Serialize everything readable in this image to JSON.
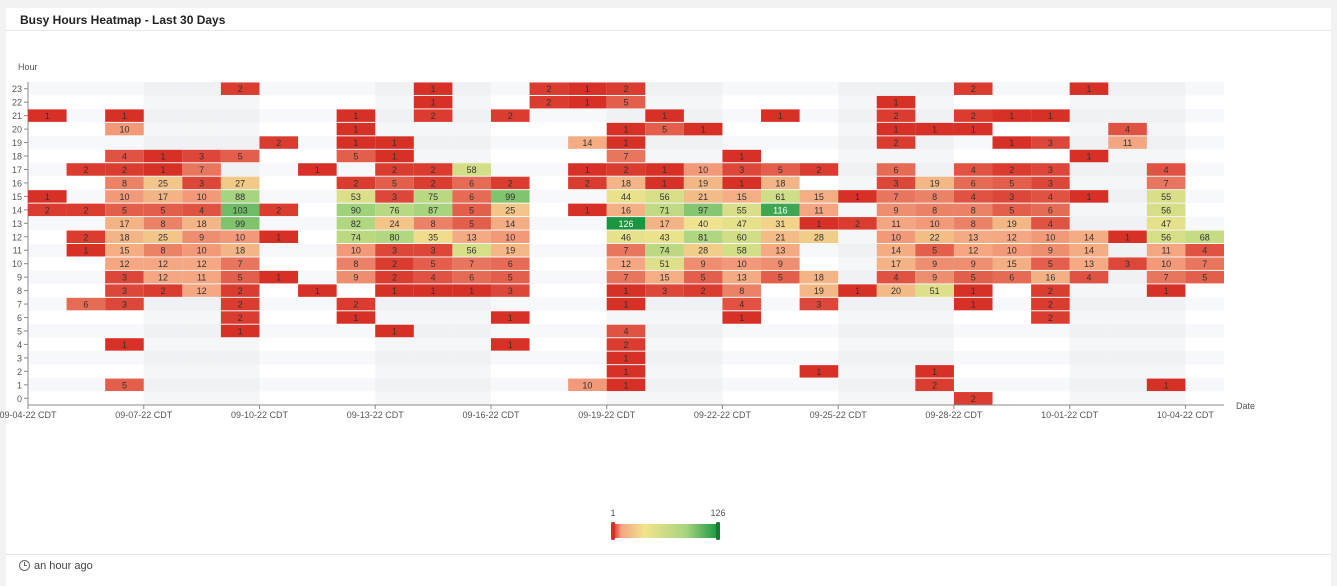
{
  "panel": {
    "title": "Busy Hours Heatmap - Last 30 Days"
  },
  "footer": {
    "updated": "an hour ago"
  },
  "chart_data": {
    "type": "heatmap",
    "title": "Busy Hours Heatmap - Last 30 Days",
    "xlabel": "Date",
    "ylabel": "Hour",
    "x_ticks": [
      "09-04-22  CDT",
      "09-07-22  CDT",
      "09-10-22  CDT",
      "09-13-22  CDT",
      "09-16-22  CDT",
      "09-19-22  CDT",
      "09-22-22  CDT",
      "09-25-22  CDT",
      "09-28-22  CDT",
      "10-01-22  CDT",
      "10-04-22  CDT"
    ],
    "days": 31,
    "hours": [
      0,
      1,
      2,
      3,
      4,
      5,
      6,
      7,
      8,
      9,
      10,
      11,
      12,
      13,
      14,
      15,
      16,
      17,
      18,
      19,
      20,
      21,
      22,
      23
    ],
    "range": {
      "min": 1,
      "max": 126
    },
    "colors": [
      "#d73027",
      "#f4a582",
      "#f1e48d",
      "#a6d47e",
      "#1a9641"
    ],
    "cells": [
      [
        0,
        21,
        1
      ],
      [
        0,
        15,
        1
      ],
      [
        0,
        14,
        2
      ],
      [
        1,
        17,
        2
      ],
      [
        1,
        14,
        2
      ],
      [
        1,
        12,
        2
      ],
      [
        1,
        11,
        1
      ],
      [
        1,
        7,
        6
      ],
      [
        2,
        21,
        1
      ],
      [
        2,
        20,
        10
      ],
      [
        2,
        18,
        4
      ],
      [
        2,
        17,
        2
      ],
      [
        2,
        16,
        8
      ],
      [
        2,
        15,
        10
      ],
      [
        2,
        14,
        5
      ],
      [
        2,
        13,
        17
      ],
      [
        2,
        12,
        18
      ],
      [
        2,
        11,
        15
      ],
      [
        2,
        10,
        12
      ],
      [
        2,
        9,
        3
      ],
      [
        2,
        8,
        3
      ],
      [
        2,
        7,
        3
      ],
      [
        2,
        4,
        1
      ],
      [
        2,
        1,
        5
      ],
      [
        3,
        18,
        1
      ],
      [
        3,
        17,
        1
      ],
      [
        3,
        16,
        25
      ],
      [
        3,
        15,
        17
      ],
      [
        3,
        14,
        5
      ],
      [
        3,
        13,
        8
      ],
      [
        3,
        12,
        25
      ],
      [
        3,
        11,
        8
      ],
      [
        3,
        10,
        12
      ],
      [
        3,
        9,
        12
      ],
      [
        3,
        8,
        2
      ],
      [
        4,
        18,
        3
      ],
      [
        4,
        17,
        7
      ],
      [
        4,
        16,
        3
      ],
      [
        4,
        15,
        10
      ],
      [
        4,
        14,
        4
      ],
      [
        4,
        13,
        18
      ],
      [
        4,
        12,
        9
      ],
      [
        4,
        11,
        10
      ],
      [
        4,
        10,
        12
      ],
      [
        4,
        9,
        11
      ],
      [
        4,
        8,
        12
      ],
      [
        5,
        23,
        2
      ],
      [
        5,
        18,
        5
      ],
      [
        5,
        16,
        27
      ],
      [
        5,
        15,
        88
      ],
      [
        5,
        14,
        103
      ],
      [
        5,
        13,
        99
      ],
      [
        5,
        12,
        10
      ],
      [
        5,
        11,
        18
      ],
      [
        5,
        10,
        7
      ],
      [
        5,
        9,
        5
      ],
      [
        5,
        8,
        2
      ],
      [
        5,
        7,
        2
      ],
      [
        5,
        6,
        2
      ],
      [
        5,
        5,
        1
      ],
      [
        6,
        19,
        2
      ],
      [
        6,
        14,
        2
      ],
      [
        6,
        12,
        1
      ],
      [
        6,
        9,
        1
      ],
      [
        7,
        17,
        1
      ],
      [
        7,
        8,
        1
      ],
      [
        8,
        21,
        1
      ],
      [
        8,
        20,
        1
      ],
      [
        8,
        19,
        1
      ],
      [
        8,
        18,
        5
      ],
      [
        8,
        16,
        2
      ],
      [
        8,
        15,
        53
      ],
      [
        8,
        14,
        90
      ],
      [
        8,
        13,
        82
      ],
      [
        8,
        12,
        74
      ],
      [
        8,
        11,
        10
      ],
      [
        8,
        10,
        8
      ],
      [
        8,
        9,
        9
      ],
      [
        8,
        7,
        2
      ],
      [
        8,
        6,
        1
      ],
      [
        9,
        19,
        1
      ],
      [
        9,
        18,
        1
      ],
      [
        9,
        17,
        2
      ],
      [
        9,
        16,
        5
      ],
      [
        9,
        15,
        3
      ],
      [
        9,
        14,
        76
      ],
      [
        9,
        13,
        24
      ],
      [
        9,
        12,
        80
      ],
      [
        9,
        11,
        3
      ],
      [
        9,
        10,
        2
      ],
      [
        9,
        9,
        2
      ],
      [
        9,
        8,
        1
      ],
      [
        9,
        5,
        1
      ],
      [
        10,
        23,
        1
      ],
      [
        10,
        22,
        1
      ],
      [
        10,
        21,
        2
      ],
      [
        10,
        17,
        2
      ],
      [
        10,
        16,
        2
      ],
      [
        10,
        15,
        75
      ],
      [
        10,
        14,
        87
      ],
      [
        10,
        13,
        8
      ],
      [
        10,
        12,
        35
      ],
      [
        10,
        11,
        3
      ],
      [
        10,
        10,
        5
      ],
      [
        10,
        9,
        4
      ],
      [
        10,
        8,
        1
      ],
      [
        11,
        17,
        58
      ],
      [
        11,
        16,
        6
      ],
      [
        11,
        15,
        6
      ],
      [
        11,
        14,
        5
      ],
      [
        11,
        13,
        5
      ],
      [
        11,
        12,
        13
      ],
      [
        11,
        11,
        56
      ],
      [
        11,
        10,
        7
      ],
      [
        11,
        9,
        6
      ],
      [
        11,
        8,
        1
      ],
      [
        12,
        21,
        2
      ],
      [
        12,
        16,
        2
      ],
      [
        12,
        15,
        99
      ],
      [
        12,
        14,
        25
      ],
      [
        12,
        13,
        14
      ],
      [
        12,
        12,
        10
      ],
      [
        12,
        11,
        19
      ],
      [
        12,
        10,
        6
      ],
      [
        12,
        9,
        5
      ],
      [
        12,
        8,
        3
      ],
      [
        12,
        6,
        1
      ],
      [
        12,
        4,
        1
      ],
      [
        13,
        23,
        2
      ],
      [
        13,
        22,
        2
      ],
      [
        14,
        23,
        1
      ],
      [
        14,
        22,
        1
      ],
      [
        14,
        19,
        14
      ],
      [
        14,
        17,
        1
      ],
      [
        14,
        16,
        2
      ],
      [
        14,
        14,
        1
      ],
      [
        14,
        1,
        10
      ],
      [
        15,
        23,
        2
      ],
      [
        15,
        22,
        5
      ],
      [
        15,
        20,
        1
      ],
      [
        15,
        19,
        1
      ],
      [
        15,
        18,
        7
      ],
      [
        15,
        17,
        2
      ],
      [
        15,
        16,
        18
      ],
      [
        15,
        15,
        44
      ],
      [
        15,
        14,
        16
      ],
      [
        15,
        13,
        126
      ],
      [
        15,
        12,
        46
      ],
      [
        15,
        11,
        7
      ],
      [
        15,
        10,
        12
      ],
      [
        15,
        9,
        7
      ],
      [
        15,
        8,
        1
      ],
      [
        15,
        7,
        1
      ],
      [
        15,
        5,
        4
      ],
      [
        15,
        4,
        2
      ],
      [
        15,
        3,
        1
      ],
      [
        15,
        2,
        1
      ],
      [
        15,
        1,
        1
      ],
      [
        16,
        21,
        1
      ],
      [
        16,
        20,
        5
      ],
      [
        16,
        17,
        1
      ],
      [
        16,
        16,
        1
      ],
      [
        16,
        15,
        56
      ],
      [
        16,
        14,
        71
      ],
      [
        16,
        13,
        17
      ],
      [
        16,
        12,
        43
      ],
      [
        16,
        11,
        74
      ],
      [
        16,
        10,
        51
      ],
      [
        16,
        9,
        15
      ],
      [
        16,
        8,
        3
      ],
      [
        17,
        20,
        1
      ],
      [
        17,
        17,
        10
      ],
      [
        17,
        16,
        19
      ],
      [
        17,
        15,
        21
      ],
      [
        17,
        14,
        97
      ],
      [
        17,
        13,
        40
      ],
      [
        17,
        12,
        81
      ],
      [
        17,
        11,
        28
      ],
      [
        17,
        10,
        9
      ],
      [
        17,
        9,
        5
      ],
      [
        17,
        8,
        2
      ],
      [
        18,
        16,
        1
      ],
      [
        18,
        15,
        15
      ],
      [
        18,
        14,
        55
      ],
      [
        18,
        13,
        47
      ],
      [
        18,
        12,
        60
      ],
      [
        18,
        11,
        58
      ],
      [
        18,
        10,
        10
      ],
      [
        18,
        9,
        13
      ],
      [
        18,
        8,
        8
      ],
      [
        18,
        7,
        4
      ],
      [
        18,
        6,
        1
      ],
      [
        18,
        18,
        1
      ],
      [
        18,
        17,
        3
      ],
      [
        19,
        21,
        1
      ],
      [
        19,
        17,
        5
      ],
      [
        19,
        16,
        18
      ],
      [
        19,
        15,
        61
      ],
      [
        19,
        14,
        116
      ],
      [
        19,
        13,
        31
      ],
      [
        19,
        12,
        21
      ],
      [
        19,
        11,
        13
      ],
      [
        19,
        10,
        9
      ],
      [
        19,
        9,
        5
      ],
      [
        20,
        17,
        2
      ],
      [
        20,
        15,
        15
      ],
      [
        20,
        14,
        11
      ],
      [
        20,
        13,
        1
      ],
      [
        20,
        12,
        28
      ],
      [
        20,
        9,
        18
      ],
      [
        20,
        8,
        19
      ],
      [
        20,
        7,
        3
      ],
      [
        20,
        2,
        1
      ],
      [
        21,
        15,
        1
      ],
      [
        21,
        13,
        2
      ],
      [
        21,
        8,
        1
      ],
      [
        22,
        22,
        1
      ],
      [
        22,
        21,
        2
      ],
      [
        22,
        20,
        1
      ],
      [
        22,
        19,
        2
      ],
      [
        22,
        17,
        6
      ],
      [
        22,
        16,
        3
      ],
      [
        22,
        15,
        7
      ],
      [
        22,
        14,
        9
      ],
      [
        22,
        13,
        11
      ],
      [
        22,
        12,
        10
      ],
      [
        22,
        11,
        14
      ],
      [
        22,
        10,
        17
      ],
      [
        22,
        9,
        4
      ],
      [
        22,
        8,
        20
      ],
      [
        23,
        20,
        1
      ],
      [
        23,
        16,
        19
      ],
      [
        23,
        15,
        8
      ],
      [
        23,
        14,
        8
      ],
      [
        23,
        13,
        10
      ],
      [
        23,
        12,
        22
      ],
      [
        23,
        11,
        5
      ],
      [
        23,
        10,
        9
      ],
      [
        23,
        9,
        9
      ],
      [
        23,
        8,
        51
      ],
      [
        23,
        2,
        1
      ],
      [
        23,
        1,
        2
      ],
      [
        24,
        20,
        1
      ],
      [
        24,
        17,
        4
      ],
      [
        24,
        16,
        6
      ],
      [
        24,
        15,
        4
      ],
      [
        24,
        14,
        8
      ],
      [
        24,
        13,
        8
      ],
      [
        24,
        12,
        13
      ],
      [
        24,
        11,
        12
      ],
      [
        24,
        10,
        9
      ],
      [
        24,
        9,
        5
      ],
      [
        24,
        8,
        1
      ],
      [
        24,
        7,
        1
      ],
      [
        24,
        23,
        2
      ],
      [
        24,
        21,
        2
      ],
      [
        24,
        0,
        2
      ],
      [
        25,
        21,
        1
      ],
      [
        25,
        19,
        1
      ],
      [
        25,
        17,
        2
      ],
      [
        25,
        16,
        5
      ],
      [
        25,
        15,
        3
      ],
      [
        25,
        14,
        5
      ],
      [
        25,
        13,
        19
      ],
      [
        25,
        12,
        12
      ],
      [
        25,
        11,
        10
      ],
      [
        25,
        10,
        15
      ],
      [
        25,
        9,
        6
      ],
      [
        26,
        21,
        1
      ],
      [
        26,
        19,
        3
      ],
      [
        26,
        17,
        3
      ],
      [
        26,
        16,
        3
      ],
      [
        26,
        15,
        4
      ],
      [
        26,
        14,
        6
      ],
      [
        26,
        13,
        4
      ],
      [
        26,
        12,
        10
      ],
      [
        26,
        11,
        9
      ],
      [
        26,
        10,
        5
      ],
      [
        26,
        9,
        16
      ],
      [
        26,
        8,
        2
      ],
      [
        26,
        7,
        2
      ],
      [
        26,
        6,
        2
      ],
      [
        27,
        23,
        1
      ],
      [
        27,
        18,
        1
      ],
      [
        27,
        15,
        1
      ],
      [
        27,
        12,
        14
      ],
      [
        27,
        11,
        14
      ],
      [
        27,
        10,
        13
      ],
      [
        27,
        9,
        4
      ],
      [
        28,
        20,
        4
      ],
      [
        28,
        19,
        11
      ],
      [
        28,
        12,
        1
      ],
      [
        28,
        10,
        3
      ],
      [
        29,
        17,
        4
      ],
      [
        29,
        16,
        7
      ],
      [
        29,
        15,
        55
      ],
      [
        29,
        14,
        56
      ],
      [
        29,
        13,
        47
      ],
      [
        29,
        12,
        56
      ],
      [
        29,
        11,
        11
      ],
      [
        29,
        10,
        10
      ],
      [
        29,
        9,
        7
      ],
      [
        29,
        8,
        1
      ],
      [
        29,
        1,
        1
      ],
      [
        30,
        12,
        68
      ],
      [
        30,
        11,
        4
      ],
      [
        30,
        10,
        7
      ],
      [
        30,
        9,
        5
      ]
    ]
  }
}
